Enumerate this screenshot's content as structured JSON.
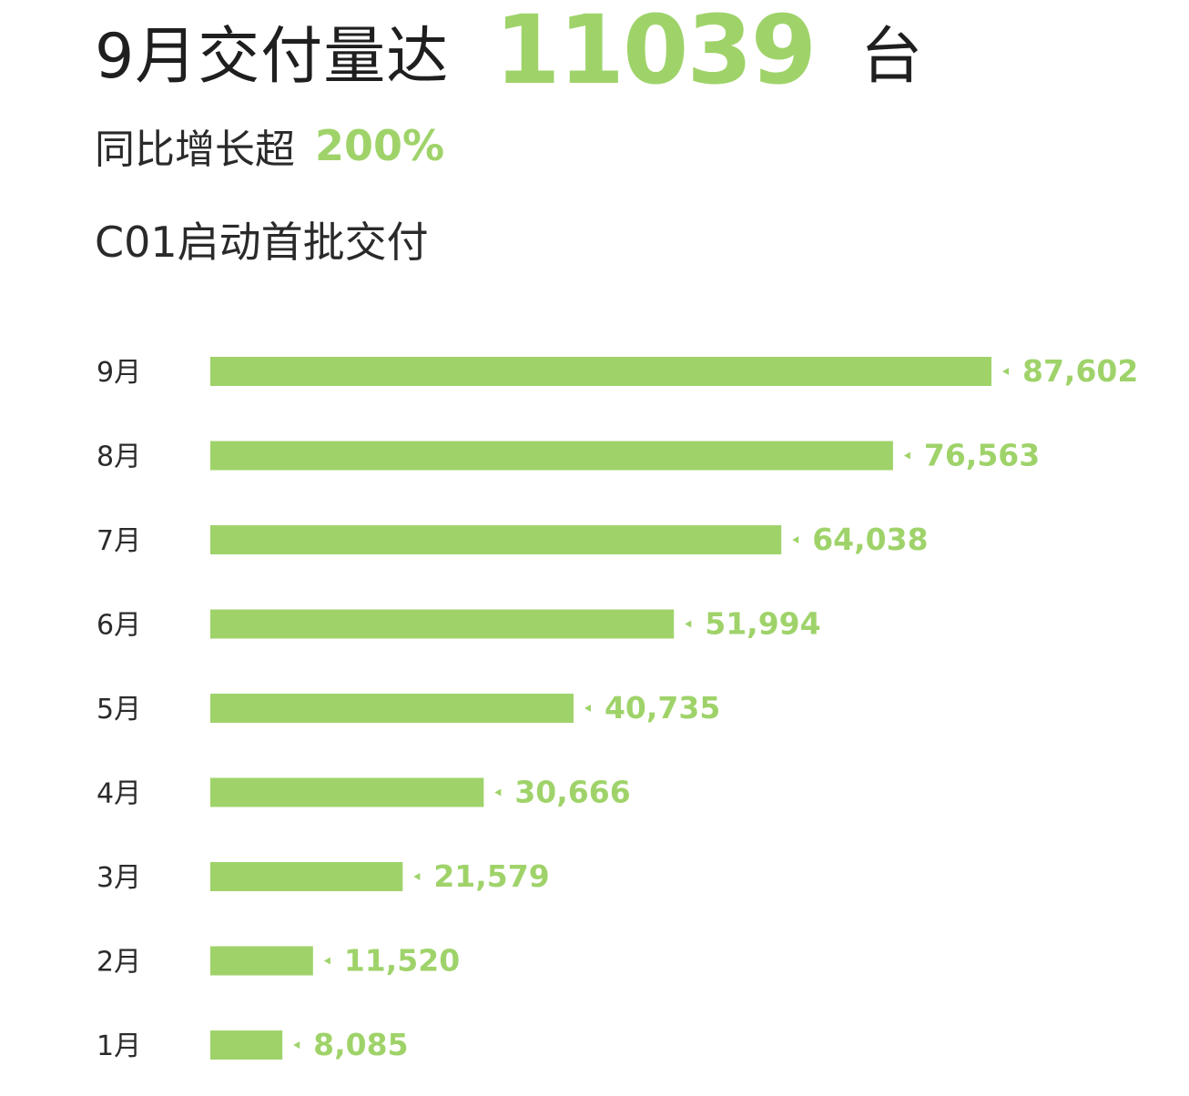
{
  "headline": {
    "lead": "9月交付量达",
    "number": "11039",
    "unit": "台"
  },
  "subline": {
    "lead": "同比增长超",
    "percent": "200%"
  },
  "note": "C01启动首批交付",
  "colors": {
    "accent": "#9fd36a",
    "text": "#1f1f1f"
  },
  "chart_data": {
    "type": "bar",
    "orientation": "horizontal",
    "categories": [
      "9月",
      "8月",
      "7月",
      "6月",
      "5月",
      "4月",
      "3月",
      "2月",
      "1月"
    ],
    "values": [
      87602,
      76563,
      64038,
      51994,
      40735,
      30666,
      21579,
      11520,
      8085
    ],
    "value_labels": [
      "87,602",
      "76,563",
      "64,038",
      "51,994",
      "40,735",
      "30,666",
      "21,579",
      "11,520",
      "8,085"
    ],
    "xlim": [
      0,
      87602
    ],
    "grid": false,
    "legend": "none"
  }
}
